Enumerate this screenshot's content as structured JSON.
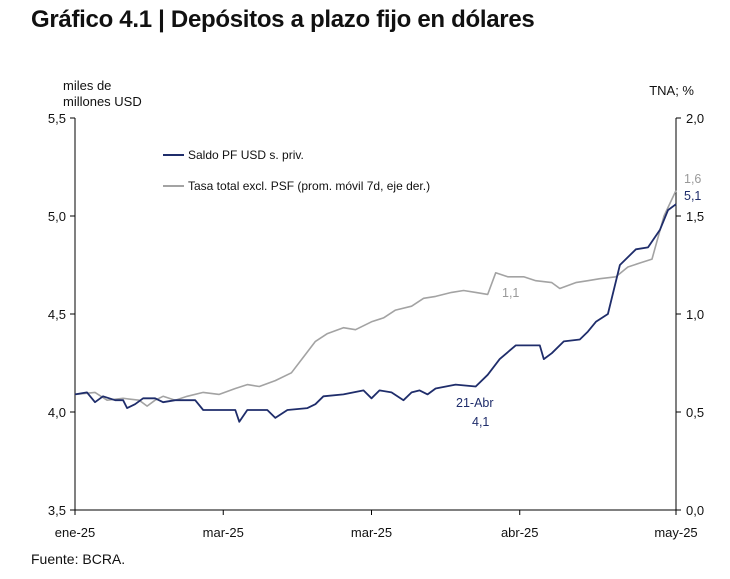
{
  "title": "Gráfico 4.1 | Depósitos a plazo fijo en dólares",
  "source": "Fuente: BCRA.",
  "chart_data": {
    "type": "line",
    "left_axis": {
      "label_line1": "miles de",
      "label_line2": "millones USD",
      "ylim": [
        3.5,
        5.5
      ],
      "ticks": [
        3.5,
        4.0,
        4.5,
        5.0,
        5.5
      ],
      "tick_labels": [
        "3,5",
        "4,0",
        "4,5",
        "5,0",
        "5,5"
      ]
    },
    "right_axis": {
      "label": "TNA; %",
      "ylim": [
        0.0,
        2.0
      ],
      "ticks": [
        0.0,
        0.5,
        1.0,
        1.5,
        2.0
      ],
      "tick_labels": [
        "0,0",
        "0,5",
        "1,0",
        "1,5",
        "2,0"
      ]
    },
    "x_tick_labels": [
      "ene-25",
      "mar-25",
      "mar-25",
      "abr-25",
      "may-25"
    ],
    "x_tick_positions": [
      0,
      37,
      74,
      111,
      150
    ],
    "n_points": 151,
    "series": [
      {
        "name": "Saldo PF USD s. priv.",
        "axis": "left",
        "color": "#1f2d6b",
        "points": [
          [
            0,
            4.09
          ],
          [
            3,
            4.1
          ],
          [
            5,
            4.05
          ],
          [
            7,
            4.08
          ],
          [
            10,
            4.06
          ],
          [
            12,
            4.06
          ],
          [
            13,
            4.02
          ],
          [
            15,
            4.04
          ],
          [
            17,
            4.07
          ],
          [
            20,
            4.07
          ],
          [
            22,
            4.05
          ],
          [
            25,
            4.06
          ],
          [
            30,
            4.06
          ],
          [
            32,
            4.01
          ],
          [
            40,
            4.01
          ],
          [
            41,
            3.95
          ],
          [
            43,
            4.01
          ],
          [
            48,
            4.01
          ],
          [
            50,
            3.97
          ],
          [
            53,
            4.01
          ],
          [
            58,
            4.02
          ],
          [
            60,
            4.04
          ],
          [
            62,
            4.08
          ],
          [
            67,
            4.09
          ],
          [
            72,
            4.11
          ],
          [
            74,
            4.07
          ],
          [
            76,
            4.11
          ],
          [
            79,
            4.1
          ],
          [
            82,
            4.06
          ],
          [
            84,
            4.1
          ],
          [
            86,
            4.11
          ],
          [
            88,
            4.09
          ],
          [
            90,
            4.12
          ],
          [
            95,
            4.14
          ],
          [
            100,
            4.13
          ],
          [
            103,
            4.19
          ],
          [
            106,
            4.27
          ],
          [
            110,
            4.34
          ],
          [
            116,
            4.34
          ],
          [
            117,
            4.27
          ],
          [
            119,
            4.3
          ],
          [
            122,
            4.36
          ],
          [
            126,
            4.37
          ],
          [
            128,
            4.41
          ],
          [
            130,
            4.46
          ],
          [
            133,
            4.5
          ],
          [
            136,
            4.75
          ],
          [
            140,
            4.83
          ],
          [
            143,
            4.84
          ],
          [
            146,
            4.93
          ],
          [
            148,
            5.03
          ],
          [
            150,
            5.06
          ]
        ]
      },
      {
        "name": "Tasa total excl. PSF (prom. móvil 7d, eje der.)",
        "axis": "right",
        "color": "#a3a3a3",
        "points": [
          [
            0,
            0.59
          ],
          [
            5,
            0.6
          ],
          [
            8,
            0.56
          ],
          [
            12,
            0.57
          ],
          [
            16,
            0.56
          ],
          [
            18,
            0.53
          ],
          [
            20,
            0.56
          ],
          [
            22,
            0.58
          ],
          [
            25,
            0.56
          ],
          [
            28,
            0.58
          ],
          [
            32,
            0.6
          ],
          [
            36,
            0.59
          ],
          [
            40,
            0.62
          ],
          [
            43,
            0.64
          ],
          [
            46,
            0.63
          ],
          [
            50,
            0.66
          ],
          [
            54,
            0.7
          ],
          [
            57,
            0.78
          ],
          [
            60,
            0.86
          ],
          [
            63,
            0.9
          ],
          [
            67,
            0.93
          ],
          [
            70,
            0.92
          ],
          [
            74,
            0.96
          ],
          [
            77,
            0.98
          ],
          [
            80,
            1.02
          ],
          [
            84,
            1.04
          ],
          [
            87,
            1.08
          ],
          [
            90,
            1.09
          ],
          [
            94,
            1.11
          ],
          [
            97,
            1.12
          ],
          [
            100,
            1.11
          ],
          [
            103,
            1.1
          ],
          [
            105,
            1.21
          ],
          [
            108,
            1.19
          ],
          [
            112,
            1.19
          ],
          [
            115,
            1.17
          ],
          [
            119,
            1.16
          ],
          [
            121,
            1.13
          ],
          [
            125,
            1.16
          ],
          [
            128,
            1.17
          ],
          [
            131,
            1.18
          ],
          [
            135,
            1.19
          ],
          [
            138,
            1.24
          ],
          [
            141,
            1.26
          ],
          [
            144,
            1.28
          ],
          [
            147,
            1.5
          ],
          [
            150,
            1.63
          ]
        ]
      }
    ],
    "annotations": [
      {
        "text": "21-Abr",
        "series": 0
      },
      {
        "text": "4,1",
        "series": 0
      },
      {
        "text": "1,1",
        "series": 1
      },
      {
        "text": "5,1",
        "series": 0
      },
      {
        "text": "1,6",
        "series": 1
      }
    ],
    "grid": false,
    "legend_position": "top-left"
  }
}
